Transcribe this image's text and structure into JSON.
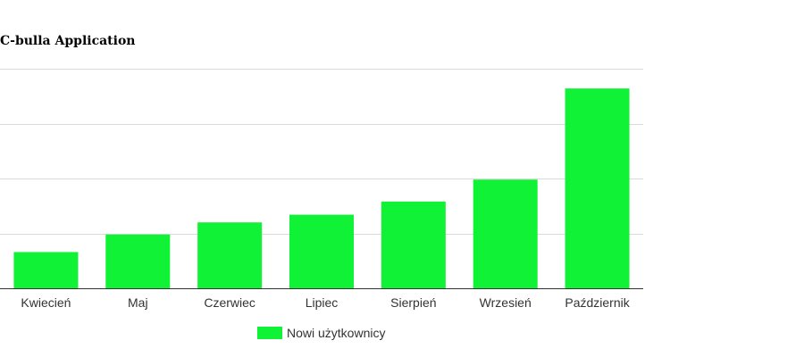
{
  "chart_data": {
    "type": "bar",
    "title": "C-bulla Application",
    "xlabel": "",
    "ylabel": "",
    "categories": [
      "Kwiecień",
      "Maj",
      "Czerwiec",
      "Lipiec",
      "Sierpień",
      "Wrzesień",
      "Październik"
    ],
    "series": [
      {
        "name": "Nowi użytkownicy",
        "values": [
          16.5,
          24.5,
          30,
          33.5,
          39.5,
          49.5,
          91
        ],
        "color": "#10f235"
      }
    ],
    "ylim": [
      0,
      100
    ],
    "y_gridlines": [
      25,
      50,
      75,
      100
    ],
    "grid": true,
    "y_tick_labels_shown": false,
    "legend_position": "bottom"
  }
}
